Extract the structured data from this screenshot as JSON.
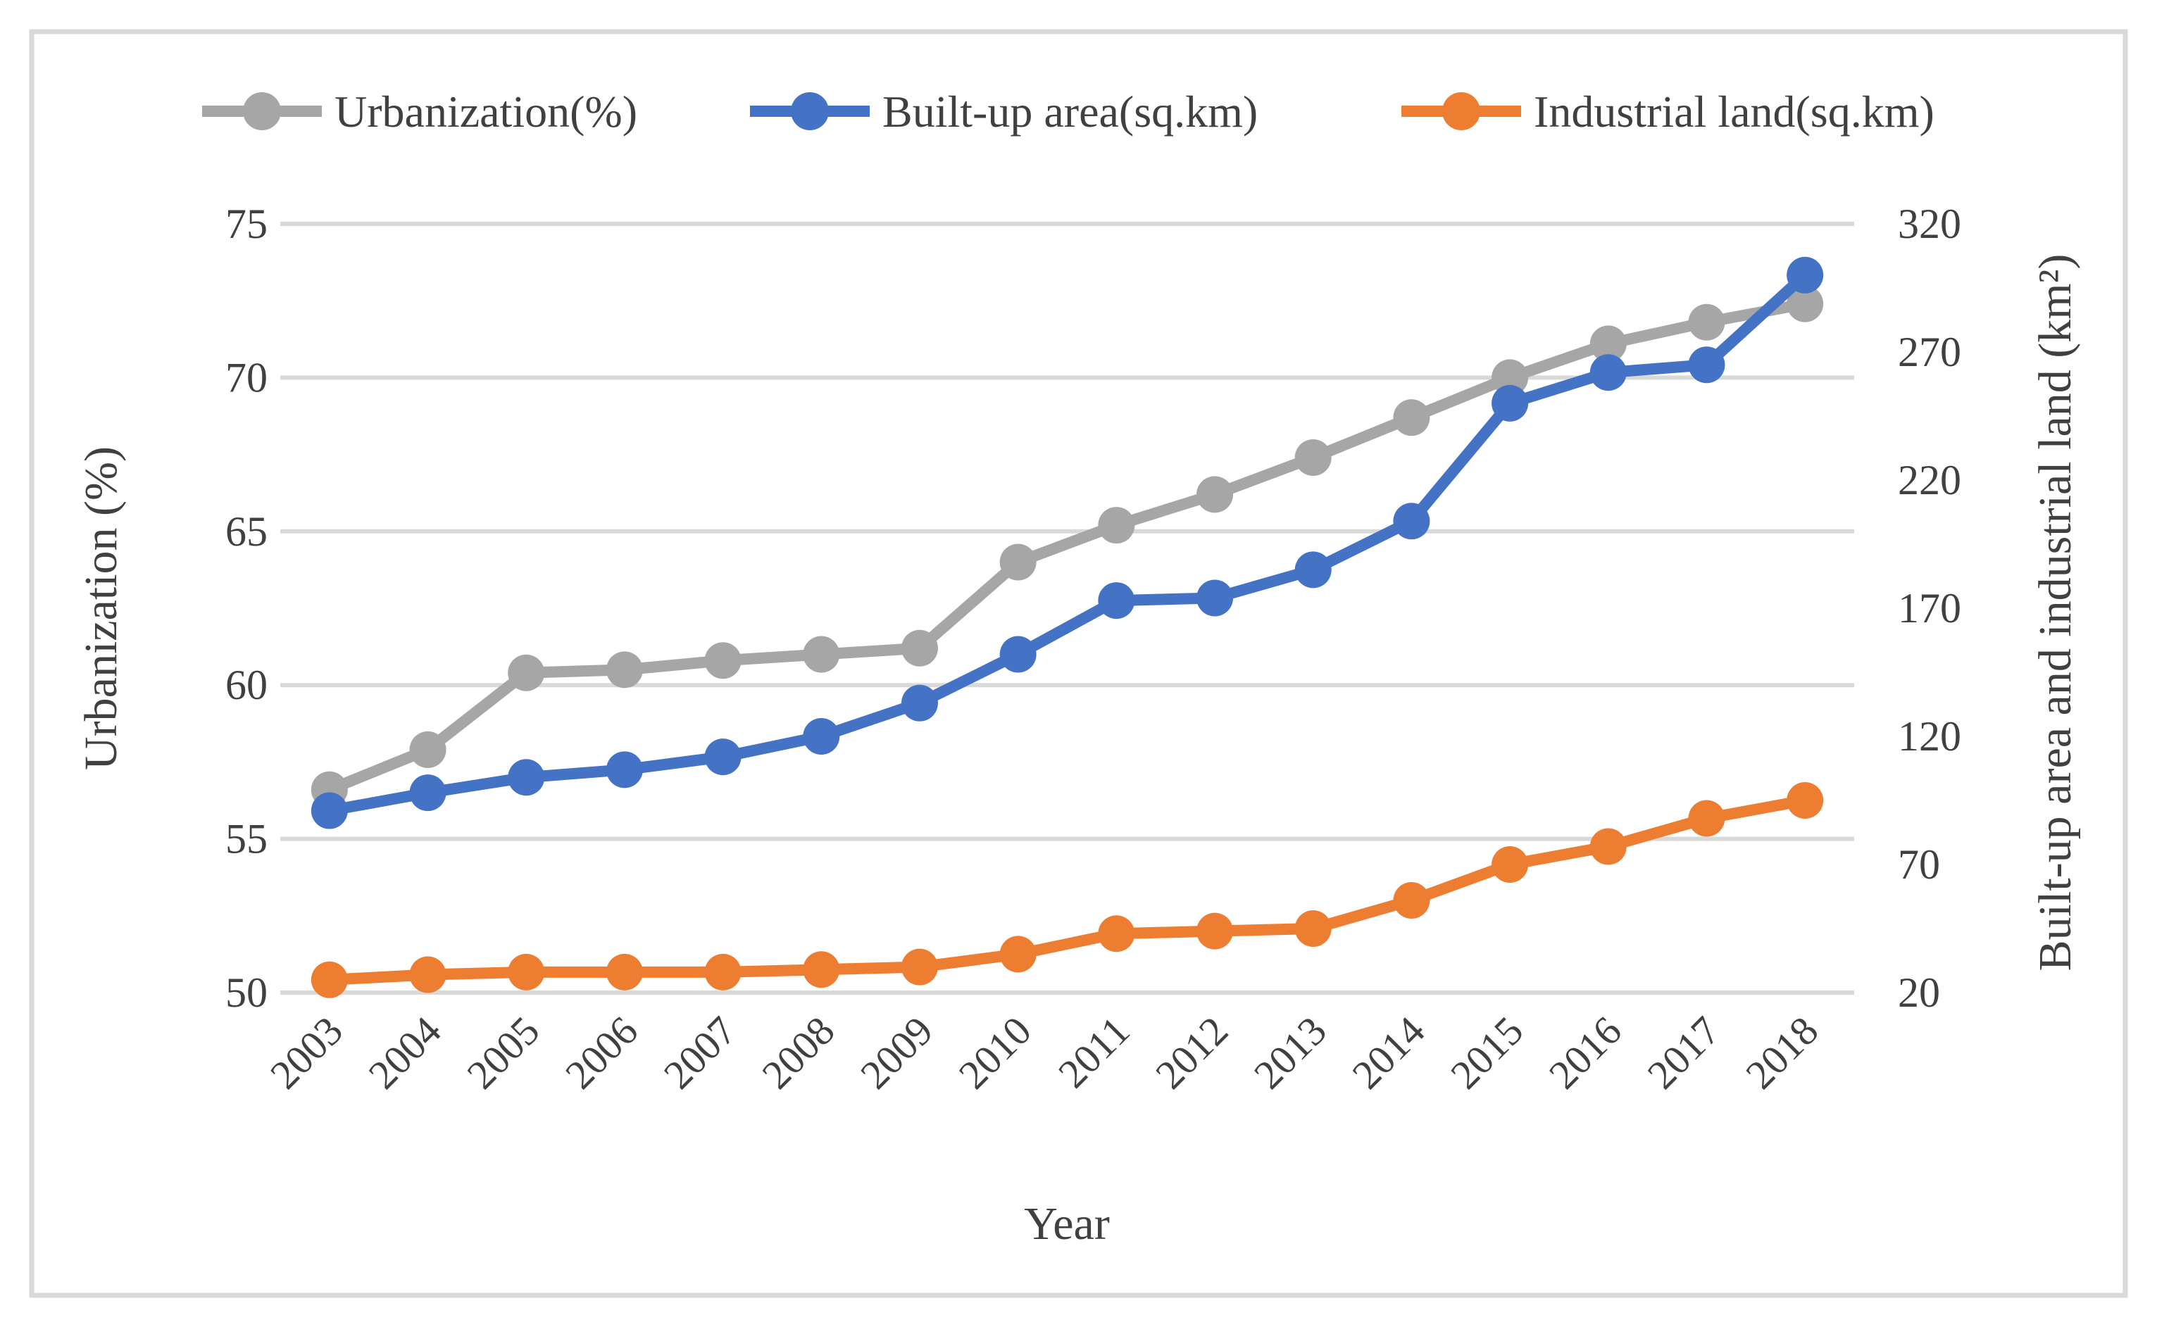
{
  "chart_data": {
    "type": "line",
    "title": "",
    "xlabel": "Year",
    "x": [
      "2003",
      "2004",
      "2005",
      "2006",
      "2007",
      "2008",
      "2009",
      "2010",
      "2011",
      "2012",
      "2013",
      "2014",
      "2015",
      "2016",
      "2017",
      "2018"
    ],
    "series": [
      {
        "name": "Urbanization(%)",
        "axis": "left",
        "color": "#a6a6a6",
        "values": [
          56.6,
          57.9,
          60.4,
          60.5,
          60.8,
          61.0,
          61.2,
          64.0,
          65.2,
          66.2,
          67.4,
          68.7,
          70.0,
          71.1,
          71.8,
          72.4
        ]
      },
      {
        "name": "Built-up area(sq.km)",
        "axis": "right",
        "color": "#4472c4",
        "values": [
          91,
          98,
          104,
          107,
          112,
          120,
          133,
          152,
          173,
          174,
          185,
          204,
          250,
          262,
          265,
          300
        ]
      },
      {
        "name": "Industrial land(sq.km)",
        "axis": "right",
        "color": "#ed7d31",
        "values": [
          25,
          27,
          28,
          28,
          28,
          29,
          30,
          35,
          43,
          44,
          45,
          56,
          70,
          77,
          88,
          95
        ]
      }
    ],
    "left_axis": {
      "label": "Urbanization (%)",
      "ticks": [
        75,
        70,
        65,
        60,
        55,
        50
      ],
      "min": 50,
      "max": 75
    },
    "right_axis": {
      "label": "Built-up area and industrial land (km²)",
      "ticks": [
        320,
        270,
        220,
        170,
        120,
        70,
        20
      ],
      "min": 20,
      "max": 320
    },
    "grid": true,
    "legend_position": "top",
    "colors": {
      "grid": "#d9d9d9",
      "text": "#404040",
      "frame": "#d9d9d9",
      "background": "#ffffff"
    }
  }
}
